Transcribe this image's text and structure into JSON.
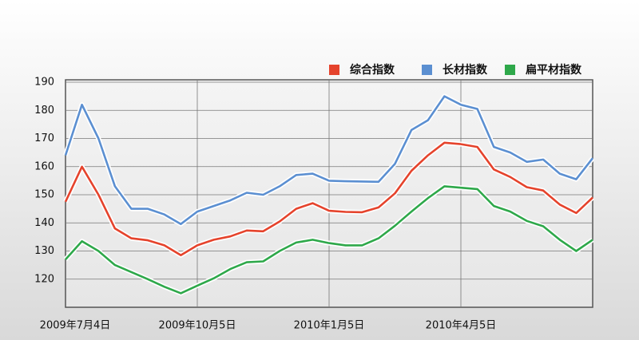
{
  "chart_data": {
    "type": "line",
    "categories": [
      "2009年7月4日",
      null,
      null,
      null,
      null,
      null,
      null,
      null,
      "2009年10月5日",
      null,
      null,
      null,
      null,
      null,
      null,
      null,
      "2010年1月5日",
      null,
      null,
      null,
      null,
      null,
      null,
      null,
      "2010年4月5日",
      null,
      null,
      null,
      null,
      null,
      null,
      null,
      null
    ],
    "series": [
      {
        "name": "综合指数",
        "color": "#e5432c",
        "values": [
          147.5,
          160,
          150,
          138,
          134.5,
          133.8,
          132,
          128.5,
          132,
          134,
          135.2,
          137.3,
          137,
          140.5,
          145,
          147,
          144.3,
          143.9,
          143.8,
          145.5,
          150.5,
          158.5,
          164,
          168.5,
          168,
          167,
          159,
          156.3,
          152.7,
          151.5,
          146.5,
          143.5,
          149
        ]
      },
      {
        "name": "长材指数",
        "color": "#5b8fd1",
        "values": [
          164,
          182,
          170,
          153,
          145,
          145,
          143,
          139.6,
          144,
          146,
          148,
          150.7,
          150,
          153,
          157,
          157.5,
          155,
          154.8,
          154.7,
          154.6,
          161,
          173,
          176.5,
          185,
          182,
          180.5,
          167,
          165,
          161.7,
          162.5,
          157.5,
          155.5,
          163
        ]
      },
      {
        "name": "扁平材指数",
        "color": "#2ea84a",
        "values": [
          127,
          133.5,
          130,
          125,
          122.5,
          120,
          117.3,
          115,
          117.7,
          120.3,
          123.6,
          126,
          126.3,
          130,
          133,
          134,
          132.8,
          132,
          132,
          134.5,
          139,
          144,
          148.8,
          153,
          152.5,
          152,
          146,
          144,
          140.7,
          138.8,
          134,
          130,
          134
        ]
      }
    ],
    "ylim": [
      110,
      190
    ],
    "yticks": [
      120,
      130,
      140,
      150,
      160,
      170,
      180,
      190
    ],
    "grid": true
  }
}
